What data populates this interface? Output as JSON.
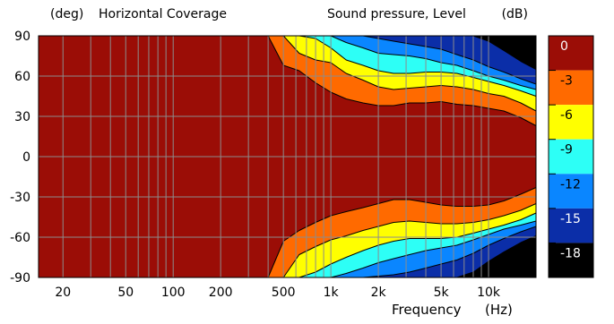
{
  "chart_data": {
    "type": "heatmap",
    "title": "Horizontal Coverage",
    "y_unit_label": "(deg)",
    "value_label": "Sound pressure, Level",
    "value_unit": "(dB)",
    "xlabel": "Frequency",
    "xlabel_unit": "(Hz)",
    "x_scale": "log",
    "xlim": [
      14,
      20000
    ],
    "ylim": [
      -90,
      90
    ],
    "x_ticks": [
      {
        "value": 20,
        "label": "20"
      },
      {
        "value": 50,
        "label": "50"
      },
      {
        "value": 100,
        "label": "100"
      },
      {
        "value": 200,
        "label": "200"
      },
      {
        "value": 500,
        "label": "500"
      },
      {
        "value": 1000,
        "label": "1k"
      },
      {
        "value": 2000,
        "label": "2k"
      },
      {
        "value": 5000,
        "label": "5k"
      },
      {
        "value": 10000,
        "label": "10k"
      }
    ],
    "y_ticks": [
      90,
      60,
      30,
      0,
      -30,
      -60,
      -90
    ],
    "grid": true,
    "colorbar": {
      "position": "right",
      "levels": [
        {
          "label": "0",
          "color": "#9b0d06"
        },
        {
          "label": "-3",
          "color": "#ff6a00"
        },
        {
          "label": "-6",
          "color": "#ffff00"
        },
        {
          "label": "-9",
          "color": "#2dfff6"
        },
        {
          "label": "-12",
          "color": "#0a86ff"
        },
        {
          "label": "-15",
          "color": "#0b2ea8"
        },
        {
          "label": "-18",
          "color": "#000000"
        }
      ]
    },
    "contours": {
      "frequencies": [
        400,
        500,
        630,
        800,
        1000,
        1250,
        1600,
        2000,
        2500,
        3150,
        4000,
        5000,
        6300,
        8000,
        10000,
        12500,
        16000,
        20000
      ],
      "upper": {
        "-3": [
          90,
          68,
          64,
          55,
          48,
          43,
          40,
          38,
          38,
          40,
          40,
          41,
          39,
          38,
          36,
          34,
          29,
          23
        ],
        "-6": [
          90,
          90,
          77,
          72,
          70,
          62,
          57,
          52,
          50,
          51,
          52,
          53,
          52,
          50,
          47,
          45,
          40,
          34
        ],
        "-9": [
          null,
          90,
          90,
          88,
          81,
          72,
          68,
          64,
          62,
          62,
          63,
          63,
          62,
          59,
          56,
          53,
          49,
          45
        ],
        "-12": [
          null,
          null,
          null,
          90,
          90,
          85,
          81,
          77,
          76,
          75,
          73,
          70,
          68,
          64,
          60,
          57,
          53,
          50
        ],
        "-15": [
          null,
          null,
          null,
          null,
          null,
          90,
          90,
          88,
          86,
          84,
          82,
          80,
          76,
          72,
          67,
          63,
          58,
          54
        ],
        "-18": [
          null,
          null,
          null,
          null,
          null,
          null,
          null,
          null,
          null,
          null,
          null,
          null,
          null,
          90,
          86,
          79,
          71,
          65
        ]
      },
      "lower": {
        "-3": [
          -90,
          -63,
          -55,
          -49,
          -44,
          -41,
          -38,
          -35,
          -32,
          -32,
          -34,
          -36,
          -37,
          -37,
          -36,
          -33,
          -28,
          -23
        ],
        "-6": [
          -90,
          -90,
          -73,
          -67,
          -62,
          -59,
          -55,
          -52,
          -49,
          -48,
          -49,
          -50,
          -50,
          -49,
          -47,
          -44,
          -40,
          -35
        ],
        "-9": [
          null,
          -90,
          -90,
          -86,
          -80,
          -75,
          -70,
          -66,
          -63,
          -61,
          -61,
          -61,
          -60,
          -57,
          -54,
          -51,
          -47,
          -42
        ],
        "-12": [
          null,
          null,
          null,
          -90,
          -90,
          -87,
          -83,
          -79,
          -76,
          -73,
          -70,
          -68,
          -66,
          -62,
          -58,
          -54,
          -51,
          -48
        ],
        "-15": [
          null,
          null,
          null,
          null,
          null,
          -90,
          -90,
          -89,
          -88,
          -86,
          -83,
          -80,
          -77,
          -72,
          -66,
          -61,
          -56,
          -52
        ],
        "-18": [
          null,
          null,
          null,
          null,
          null,
          null,
          null,
          null,
          null,
          null,
          null,
          null,
          -90,
          -86,
          -78,
          -71,
          -64,
          -59
        ]
      }
    }
  }
}
